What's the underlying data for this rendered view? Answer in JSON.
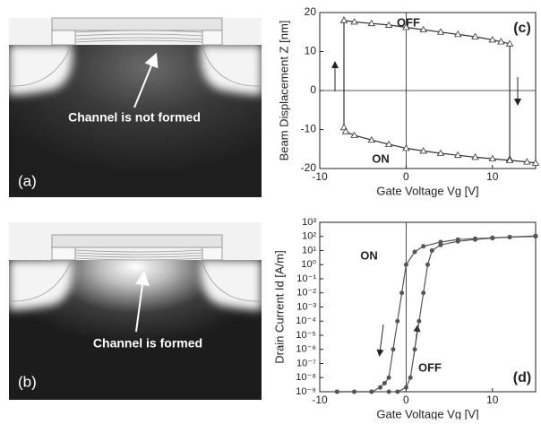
{
  "panels": [
    {
      "label": "(a)",
      "caption": "Channel is not formed"
    },
    {
      "label": "(b)",
      "caption": "Channel is formed"
    }
  ],
  "chart_data": [
    {
      "type": "line",
      "panel_label": "(c)",
      "x_label": "Gate Voltage Vg [V]",
      "y_label": "Beam Displacement Z [nm]",
      "xlim": [
        -10,
        15
      ],
      "xticks": [
        -10,
        0,
        10
      ],
      "ylim": [
        -20,
        20
      ],
      "yticks": [
        -20,
        -10,
        0,
        10,
        20
      ],
      "x_zero_line": true,
      "y_zero_line": true,
      "marker": "triangle",
      "annotations": [
        "OFF",
        "ON"
      ],
      "series": [
        {
          "color": "#333333",
          "x": [
            -7.2,
            -6,
            -4,
            -2,
            0,
            2,
            4,
            6,
            8,
            10,
            11,
            12,
            12
          ],
          "values": [
            18,
            17.6,
            17.2,
            16.8,
            16.2,
            15.6,
            15,
            14.4,
            13.8,
            13,
            12.5,
            12,
            -17.6
          ]
        },
        {
          "color": "#333333",
          "x": [
            -7.2,
            -7.2,
            -7,
            -6,
            -4,
            -2,
            0,
            2,
            4,
            6,
            8,
            10,
            12,
            14,
            15
          ],
          "values": [
            18,
            -9.5,
            -10.5,
            -11.5,
            -12.7,
            -13.8,
            -14.8,
            -15.5,
            -16.1,
            -16.6,
            -17.1,
            -17.5,
            -17.9,
            -18.3,
            -18.6
          ]
        }
      ]
    },
    {
      "type": "line",
      "panel_label": "(d)",
      "x_label": "Gate Voltage Vg [V]",
      "y_label": "Drain Current Id [A/m]",
      "xlim": [
        -10,
        15
      ],
      "xticks": [
        -10,
        0,
        10
      ],
      "ylog": true,
      "ylim": [
        1e-09,
        1000
      ],
      "yticks": [
        {
          "value": 1e-09,
          "label": "10⁻⁹"
        },
        {
          "value": 1e-08,
          "label": "10⁻⁸"
        },
        {
          "value": 1e-07,
          "label": "10⁻⁷"
        },
        {
          "value": 1e-06,
          "label": "10⁻⁶"
        },
        {
          "value": 1e-05,
          "label": "10⁻⁵"
        },
        {
          "value": 0.0001,
          "label": "10⁻⁴"
        },
        {
          "value": 0.001,
          "label": "10⁻³"
        },
        {
          "value": 0.01,
          "label": "10⁻²"
        },
        {
          "value": 0.1,
          "label": "10⁻¹"
        },
        {
          "value": 1,
          "label": "10⁰"
        },
        {
          "value": 10,
          "label": "10¹"
        },
        {
          "value": 100,
          "label": "10²"
        },
        {
          "value": 1000,
          "label": "10³"
        }
      ],
      "x_zero_line": true,
      "y_zero_line": false,
      "marker": "circle",
      "annotations": [
        "ON",
        "OFF"
      ],
      "series": [
        {
          "color": "#555555",
          "x": [
            15,
            12,
            10,
            8,
            6,
            4,
            2,
            1,
            0,
            -0.5,
            -1,
            -1.5,
            -2,
            -2.5,
            -3,
            -4,
            -6,
            -8
          ],
          "values": [
            100,
            90,
            80,
            70,
            60,
            40,
            20,
            8,
            1,
            0.01,
            0.0001,
            1e-06,
            1e-08,
            4e-09,
            2e-09,
            1e-09,
            1e-09,
            1e-09
          ]
        },
        {
          "color": "#555555",
          "x": [
            -8,
            -6,
            -4,
            -2,
            -1,
            0,
            0.5,
            1,
            1.5,
            2,
            2.5,
            3,
            4,
            6,
            8,
            10,
            12,
            15
          ],
          "values": [
            1e-09,
            1e-09,
            1e-09,
            1e-09,
            1e-09,
            2e-09,
            1e-08,
            1e-06,
            0.0001,
            0.01,
            1,
            10,
            25,
            45,
            60,
            75,
            90,
            110
          ]
        }
      ]
    }
  ]
}
